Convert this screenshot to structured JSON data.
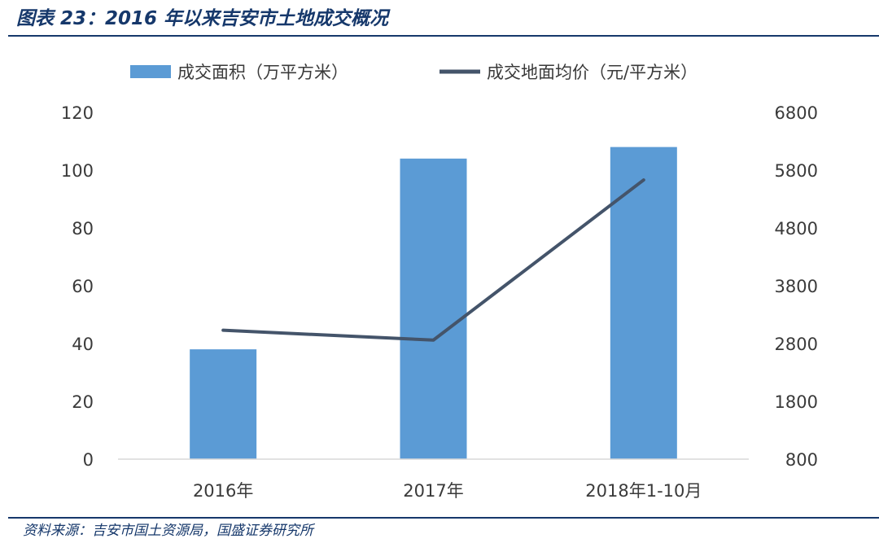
{
  "figure": {
    "title": "图表 23：2016 年以来吉安市土地成交概况",
    "source": "资料来源：吉安市国土资源局，国盛证券研究所"
  },
  "chart_data": {
    "type": "bar",
    "title": "",
    "xlabel": "",
    "categories": [
      "2016年",
      "2017年",
      "2018年1-10月"
    ],
    "series": [
      {
        "name": "成交面积（万平方米）",
        "type": "bar",
        "axis": "left",
        "color": "#5b9bd5",
        "values": [
          38,
          104,
          108
        ]
      },
      {
        "name": "成交地面均价（元/平方米）",
        "type": "line",
        "axis": "right",
        "color": "#44546a",
        "values": [
          3030,
          2860,
          5630
        ]
      }
    ],
    "y_left": {
      "ylim": [
        0,
        120
      ],
      "ticks": [
        0,
        20,
        40,
        60,
        80,
        100,
        120
      ],
      "tick_labels": [
        "0",
        "20",
        "40",
        "60",
        "80",
        "100",
        "120"
      ]
    },
    "y_right": {
      "ylim": [
        800,
        6800
      ],
      "ticks": [
        800,
        1800,
        2800,
        3800,
        4800,
        5800,
        6800
      ],
      "tick_labels": [
        "800",
        "1800",
        "2800",
        "3800",
        "4800",
        "5800",
        "6800"
      ]
    },
    "grid": false,
    "legend_position": "top"
  }
}
